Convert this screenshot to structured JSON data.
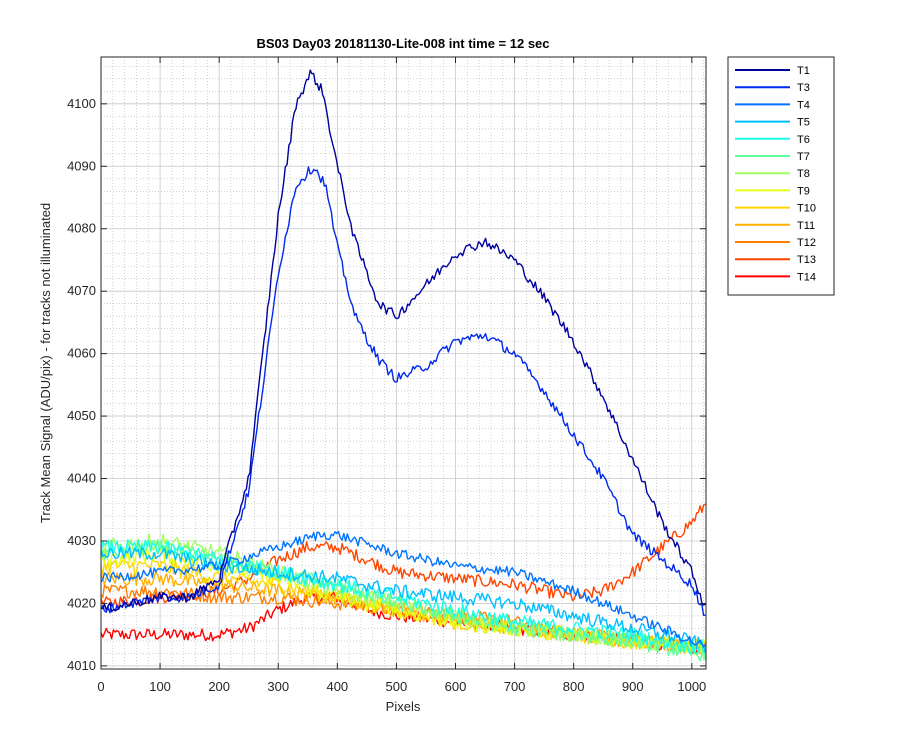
{
  "chart_data": {
    "type": "line",
    "title": "BS03 Day03 20181130-Lite-008 int time = 12 sec",
    "xlabel": "Pixels",
    "ylabel": "Track Mean Signal (ADU/pix) - for tracks not illuminated",
    "xlim": [
      0,
      1024
    ],
    "ylim": [
      4009.5,
      4107.5
    ],
    "x_ticks": [
      0,
      100,
      200,
      300,
      400,
      500,
      600,
      700,
      800,
      900,
      1000
    ],
    "y_ticks": [
      4010,
      4020,
      4030,
      4040,
      4050,
      4060,
      4070,
      4080,
      4090,
      4100
    ],
    "grid": "major and minor (dotted)",
    "legend_position": "outside right, top",
    "series": [
      {
        "name": "T1",
        "color": "#00009f",
        "noise": 0.8,
        "points": [
          [
            0,
            4019
          ],
          [
            100,
            4021
          ],
          [
            150,
            4021
          ],
          [
            200,
            4024
          ],
          [
            250,
            4040
          ],
          [
            300,
            4082
          ],
          [
            330,
            4100
          ],
          [
            355,
            4105
          ],
          [
            375,
            4102
          ],
          [
            400,
            4090
          ],
          [
            430,
            4078
          ],
          [
            470,
            4068
          ],
          [
            500,
            4066
          ],
          [
            550,
            4071
          ],
          [
            600,
            4076
          ],
          [
            650,
            4078
          ],
          [
            700,
            4075
          ],
          [
            750,
            4069
          ],
          [
            800,
            4062
          ],
          [
            850,
            4053
          ],
          [
            900,
            4043
          ],
          [
            950,
            4033
          ],
          [
            1000,
            4025
          ],
          [
            1024,
            4019
          ]
        ]
      },
      {
        "name": "T3",
        "color": "#0029ef",
        "noise": 0.8,
        "points": [
          [
            0,
            4019
          ],
          [
            100,
            4021
          ],
          [
            150,
            4021
          ],
          [
            200,
            4023
          ],
          [
            250,
            4038
          ],
          [
            300,
            4073
          ],
          [
            330,
            4087
          ],
          [
            360,
            4090
          ],
          [
            380,
            4087
          ],
          [
            400,
            4077
          ],
          [
            430,
            4066
          ],
          [
            470,
            4059
          ],
          [
            500,
            4056
          ],
          [
            550,
            4058
          ],
          [
            600,
            4062
          ],
          [
            650,
            4063
          ],
          [
            700,
            4060
          ],
          [
            750,
            4054
          ],
          [
            800,
            4047
          ],
          [
            850,
            4040
          ],
          [
            900,
            4031
          ],
          [
            950,
            4027
          ],
          [
            1000,
            4023
          ],
          [
            1024,
            4018
          ]
        ]
      },
      {
        "name": "T4",
        "color": "#0073ff",
        "noise": 0.8,
        "points": [
          [
            0,
            4024
          ],
          [
            100,
            4025
          ],
          [
            200,
            4026
          ],
          [
            300,
            4029
          ],
          [
            370,
            4031
          ],
          [
            400,
            4031
          ],
          [
            500,
            4028
          ],
          [
            600,
            4026
          ],
          [
            700,
            4025
          ],
          [
            800,
            4022
          ],
          [
            850,
            4020
          ],
          [
            900,
            4018
          ],
          [
            950,
            4016
          ],
          [
            1000,
            4014
          ],
          [
            1024,
            4013
          ]
        ]
      },
      {
        "name": "T5",
        "color": "#00bfff",
        "noise": 1.1,
        "points": [
          [
            0,
            4028
          ],
          [
            100,
            4028
          ],
          [
            200,
            4026
          ],
          [
            300,
            4025
          ],
          [
            400,
            4024
          ],
          [
            500,
            4022
          ],
          [
            600,
            4021
          ],
          [
            700,
            4020
          ],
          [
            800,
            4018
          ],
          [
            900,
            4016
          ],
          [
            1000,
            4014
          ],
          [
            1024,
            4013
          ]
        ]
      },
      {
        "name": "T6",
        "color": "#17ffe8",
        "noise": 1.2,
        "points": [
          [
            0,
            4029
          ],
          [
            100,
            4029
          ],
          [
            200,
            4027
          ],
          [
            300,
            4025
          ],
          [
            400,
            4023
          ],
          [
            500,
            4021
          ],
          [
            600,
            4019
          ],
          [
            700,
            4017
          ],
          [
            800,
            4016
          ],
          [
            900,
            4015
          ],
          [
            1000,
            4013
          ],
          [
            1024,
            4013
          ]
        ]
      },
      {
        "name": "T7",
        "color": "#5fffa0",
        "noise": 1.2,
        "points": [
          [
            0,
            4028
          ],
          [
            100,
            4029
          ],
          [
            200,
            4027
          ],
          [
            300,
            4025
          ],
          [
            400,
            4023
          ],
          [
            500,
            4020
          ],
          [
            600,
            4018
          ],
          [
            700,
            4016
          ],
          [
            800,
            4015
          ],
          [
            900,
            4014
          ],
          [
            1000,
            4012
          ],
          [
            1024,
            4012
          ]
        ]
      },
      {
        "name": "T8",
        "color": "#a0ff5f",
        "noise": 1.3,
        "points": [
          [
            0,
            4029
          ],
          [
            100,
            4030
          ],
          [
            200,
            4028
          ],
          [
            300,
            4025
          ],
          [
            400,
            4022
          ],
          [
            500,
            4020
          ],
          [
            600,
            4018
          ],
          [
            700,
            4016
          ],
          [
            800,
            4015
          ],
          [
            900,
            4014
          ],
          [
            1000,
            4013
          ],
          [
            1024,
            4012
          ]
        ]
      },
      {
        "name": "T9",
        "color": "#e8ff17",
        "noise": 1.3,
        "points": [
          [
            0,
            4027
          ],
          [
            100,
            4028
          ],
          [
            200,
            4026
          ],
          [
            300,
            4024
          ],
          [
            400,
            4021
          ],
          [
            500,
            4019
          ],
          [
            600,
            4017
          ],
          [
            700,
            4016
          ],
          [
            800,
            4015
          ],
          [
            900,
            4014
          ],
          [
            1000,
            4013
          ],
          [
            1024,
            4013
          ]
        ]
      },
      {
        "name": "T10",
        "color": "#ffd700",
        "noise": 1.3,
        "points": [
          [
            0,
            4026
          ],
          [
            100,
            4026
          ],
          [
            200,
            4024
          ],
          [
            300,
            4023
          ],
          [
            400,
            4021
          ],
          [
            500,
            4019
          ],
          [
            600,
            4017
          ],
          [
            700,
            4016
          ],
          [
            800,
            4015
          ],
          [
            900,
            4014
          ],
          [
            1000,
            4013
          ],
          [
            1024,
            4013
          ]
        ]
      },
      {
        "name": "T11",
        "color": "#ffb000",
        "noise": 1.2,
        "points": [
          [
            0,
            4024
          ],
          [
            100,
            4024
          ],
          [
            200,
            4023
          ],
          [
            300,
            4022
          ],
          [
            400,
            4021
          ],
          [
            500,
            4019
          ],
          [
            600,
            4018
          ],
          [
            700,
            4016
          ],
          [
            800,
            4015
          ],
          [
            900,
            4014
          ],
          [
            1000,
            4013
          ],
          [
            1024,
            4013
          ]
        ]
      },
      {
        "name": "T12",
        "color": "#ff8000",
        "noise": 1.1,
        "points": [
          [
            0,
            4022
          ],
          [
            100,
            4022
          ],
          [
            200,
            4021
          ],
          [
            300,
            4021
          ],
          [
            400,
            4020
          ],
          [
            500,
            4019
          ],
          [
            600,
            4018
          ],
          [
            700,
            4017
          ],
          [
            800,
            4015
          ],
          [
            900,
            4014
          ],
          [
            1000,
            4013
          ],
          [
            1024,
            4013
          ]
        ]
      },
      {
        "name": "T13",
        "color": "#ff4500",
        "noise": 1.0,
        "points": [
          [
            0,
            4020
          ],
          [
            100,
            4021
          ],
          [
            200,
            4022
          ],
          [
            250,
            4024
          ],
          [
            300,
            4027
          ],
          [
            350,
            4029
          ],
          [
            400,
            4029
          ],
          [
            450,
            4027
          ],
          [
            500,
            4025
          ],
          [
            600,
            4024
          ],
          [
            700,
            4023
          ],
          [
            750,
            4022
          ],
          [
            800,
            4021
          ],
          [
            850,
            4022
          ],
          [
            900,
            4025
          ],
          [
            950,
            4029
          ],
          [
            1000,
            4033
          ],
          [
            1024,
            4036
          ]
        ]
      },
      {
        "name": "T14",
        "color": "#ff0000",
        "noise": 1.0,
        "points": [
          [
            0,
            4015
          ],
          [
            100,
            4015
          ],
          [
            200,
            4015
          ],
          [
            250,
            4016
          ],
          [
            300,
            4019
          ],
          [
            350,
            4021
          ],
          [
            400,
            4021
          ],
          [
            450,
            4019
          ],
          [
            500,
            4018
          ],
          [
            600,
            4017
          ],
          [
            700,
            4016
          ],
          [
            800,
            4015
          ],
          [
            900,
            4014
          ],
          [
            1000,
            4013
          ],
          [
            1024,
            4013
          ]
        ]
      }
    ]
  }
}
